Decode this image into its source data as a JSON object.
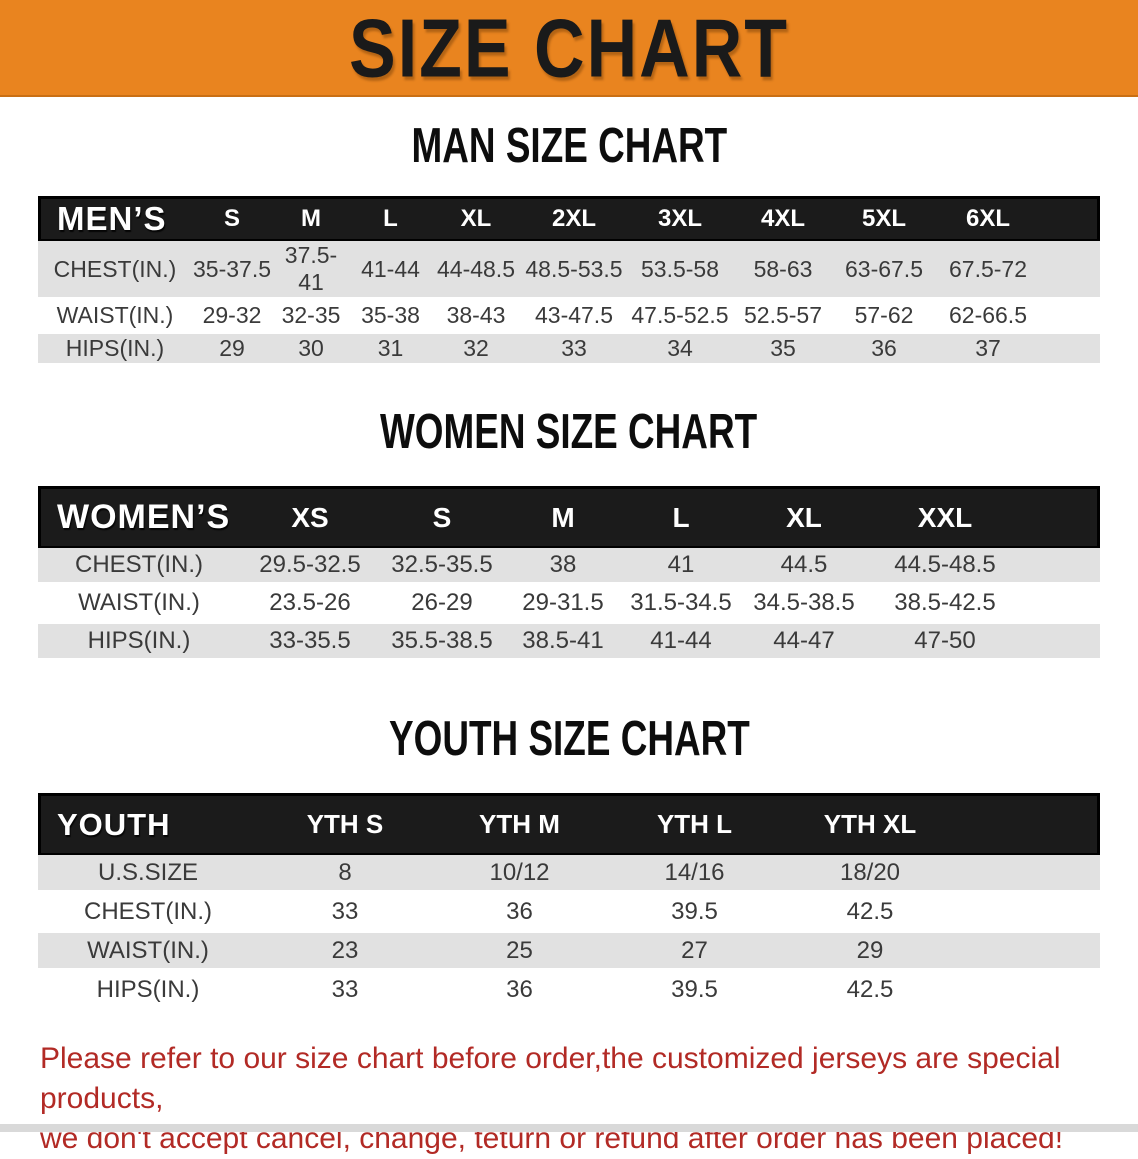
{
  "banner": {
    "title": "SIZE CHART"
  },
  "colors": {
    "banner_bg": "#E9841F",
    "banner_text": "#1A1A1A",
    "header_bar_bg": "#1B1B1B",
    "header_bar_text": "#FFFFFF",
    "row_stripe": "#E1E1E1",
    "table_text": "#3A3A3A",
    "disclaimer_text": "#B22A25",
    "footer_strip": "#D9D9D9"
  },
  "sections": [
    {
      "id": "men",
      "heading": "MAN SIZE CHART",
      "table": {
        "label_header": "MEN’S",
        "size_headers": [
          "S",
          "M",
          "L",
          "XL",
          "2XL",
          "3XL",
          "4XL",
          "5XL",
          "6XL"
        ],
        "rows": [
          {
            "label": "CHEST(IN.)",
            "values": [
              "35-37.5",
              "37.5-41",
              "41-44",
              "44-48.5",
              "48.5-53.5",
              "53.5-58",
              "58-63",
              "63-67.5",
              "67.5-72"
            ]
          },
          {
            "label": "WAIST(IN.)",
            "values": [
              "29-32",
              "32-35",
              "35-38",
              "38-43",
              "43-47.5",
              "47.5-52.5",
              "52.5-57",
              "57-62",
              "62-66.5"
            ]
          },
          {
            "label": "HIPS(IN.)",
            "values": [
              "29",
              "30",
              "31",
              "32",
              "33",
              "34",
              "35",
              "36",
              "37"
            ]
          }
        ]
      }
    },
    {
      "id": "women",
      "heading": "WOMEN SIZE CHART",
      "table": {
        "label_header": "WOMEN’S",
        "size_headers": [
          "XS",
          "S",
          "M",
          "L",
          "XL",
          "XXL"
        ],
        "rows": [
          {
            "label": "CHEST(IN.)",
            "values": [
              "29.5-32.5",
              "32.5-35.5",
              "38",
              "41",
              "44.5",
              "44.5-48.5"
            ]
          },
          {
            "label": "WAIST(IN.)",
            "values": [
              "23.5-26",
              "26-29",
              "29-31.5",
              "31.5-34.5",
              "34.5-38.5",
              "38.5-42.5"
            ]
          },
          {
            "label": "HIPS(IN.)",
            "values": [
              "33-35.5",
              "35.5-38.5",
              "38.5-41",
              "41-44",
              "44-47",
              "47-50"
            ]
          }
        ]
      }
    },
    {
      "id": "youth",
      "heading": "YOUTH SIZE CHART",
      "table": {
        "label_header": "YOUTH",
        "size_headers": [
          "YTH S",
          "YTH M",
          "YTH L",
          "YTH XL"
        ],
        "rows": [
          {
            "label": "U.S.SIZE",
            "values": [
              "8",
              "10/12",
              "14/16",
              "18/20"
            ]
          },
          {
            "label": "CHEST(IN.)",
            "values": [
              "33",
              "36",
              "39.5",
              "42.5"
            ]
          },
          {
            "label": "WAIST(IN.)",
            "values": [
              "23",
              "25",
              "27",
              "29"
            ]
          },
          {
            "label": "HIPS(IN.)",
            "values": [
              "33",
              "36",
              "39.5",
              "42.5"
            ]
          }
        ]
      }
    }
  ],
  "disclaimer": {
    "line1": "Please refer to our size chart before order,the customized jerseys are special products,",
    "line2": "we don't accept cancel, change, teturn or refund after order has been placed!"
  }
}
